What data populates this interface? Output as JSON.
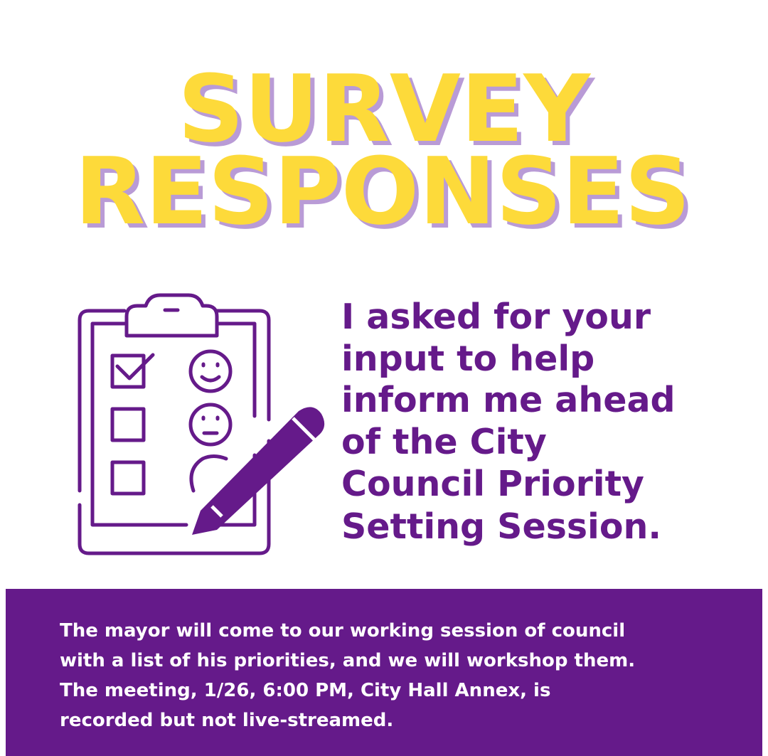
{
  "title": {
    "lines": [
      "SURVEY",
      "RESPONSES"
    ]
  },
  "message": {
    "lines": [
      "I asked for your",
      "input to help",
      "inform me ahead",
      "of the City",
      "Council Priority",
      "Setting Session."
    ]
  },
  "banner": {
    "lines": [
      "The mayor will come to our working session of council",
      "with a list of his priorities, and we will workshop them.",
      "The meeting, 1/26, 6:00 PM, City Hall Annex, is",
      "recorded but not live-streamed."
    ]
  }
}
